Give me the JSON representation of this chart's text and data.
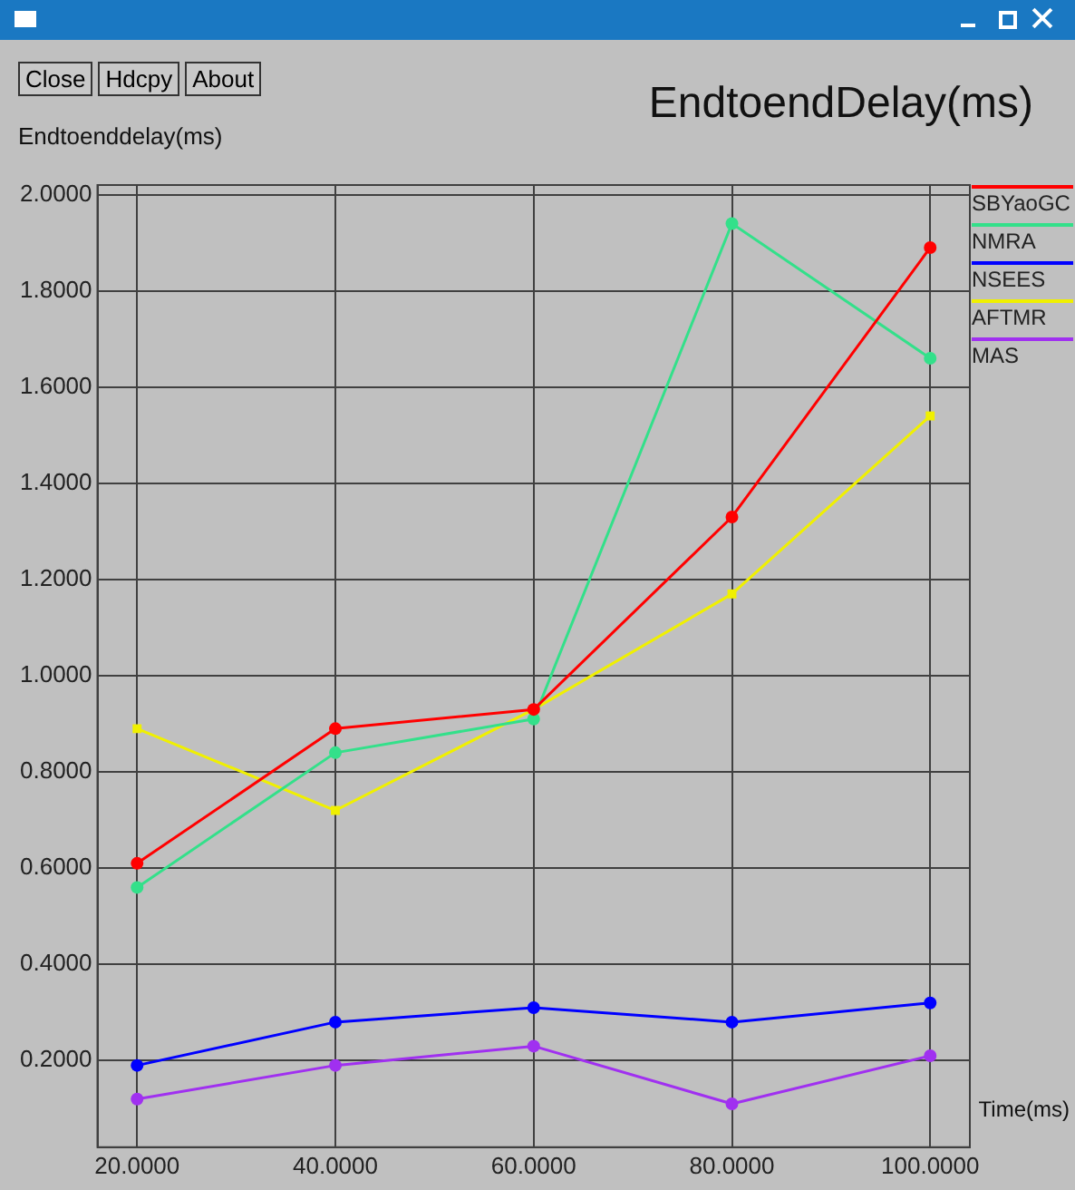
{
  "chart_data": {
    "type": "line",
    "title": "EndtoendDelay(ms)",
    "ylabel": "Endtoenddelay(ms)",
    "xlabel": "Time(ms)",
    "annotations": [
      "Close",
      "Hdcpy",
      "About"
    ],
    "x": [
      20,
      40,
      60,
      80,
      100
    ],
    "xlim": [
      16,
      104
    ],
    "ylim": [
      0.02,
      2.02
    ],
    "xticks": [
      {
        "value": 20,
        "label": "20.0000"
      },
      {
        "value": 40,
        "label": "40.0000"
      },
      {
        "value": 60,
        "label": "60.0000"
      },
      {
        "value": 80,
        "label": "80.0000"
      },
      {
        "value": 100,
        "label": "100.0000"
      }
    ],
    "yticks": [
      {
        "value": 0.2,
        "label": "0.2000"
      },
      {
        "value": 0.4,
        "label": "0.4000"
      },
      {
        "value": 0.6,
        "label": "0.6000"
      },
      {
        "value": 0.8,
        "label": "0.8000"
      },
      {
        "value": 1.0,
        "label": "1.0000"
      },
      {
        "value": 1.2,
        "label": "1.2000"
      },
      {
        "value": 1.4,
        "label": "1.4000"
      },
      {
        "value": 1.6,
        "label": "1.6000"
      },
      {
        "value": 1.8,
        "label": "1.8000"
      },
      {
        "value": 2.0,
        "label": "2.0000"
      }
    ],
    "grid": true,
    "legend": "right",
    "marker": "circle",
    "line_style": "solid",
    "series": [
      {
        "name": "SBYaoGC",
        "color": "#ff0000",
        "values": [
          0.61,
          0.89,
          0.93,
          1.33,
          1.89
        ]
      },
      {
        "name": "NMRA",
        "color": "#33e08a",
        "values": [
          0.56,
          0.84,
          0.91,
          1.94,
          1.66
        ]
      },
      {
        "name": "NSEES",
        "color": "#0000ff",
        "values": [
          0.19,
          0.28,
          0.31,
          0.28,
          0.32
        ]
      },
      {
        "name": "AFTMR",
        "color": "#f0f000",
        "marker": "square",
        "values": [
          0.89,
          0.72,
          0.93,
          1.17,
          1.54
        ]
      },
      {
        "name": "MAS",
        "color": "#a030f0",
        "values": [
          0.12,
          0.19,
          0.23,
          0.11,
          0.21
        ]
      }
    ]
  }
}
